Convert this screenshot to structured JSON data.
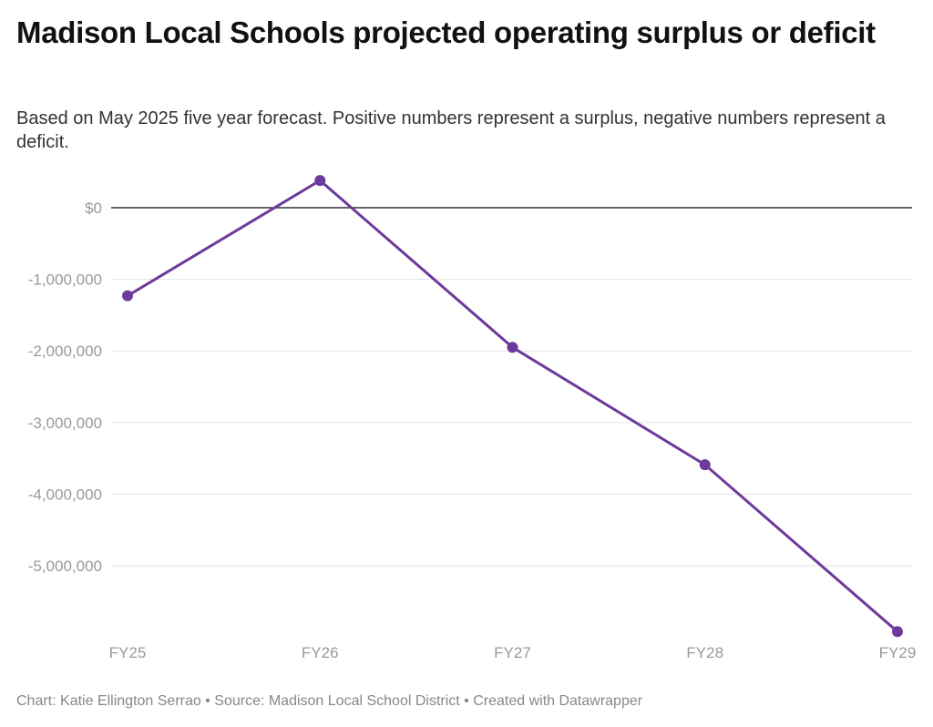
{
  "title": "Madison Local Schools projected operating surplus or deficit",
  "subtitle": "Based on May 2025 five year forecast. Positive numbers represent a surplus, negative numbers represent a deficit.",
  "footer": "Chart: Katie Ellington Serrao • Source: Madison Local School District • Created with Datawrapper",
  "chart_data": {
    "type": "line",
    "categories": [
      "FY25",
      "FY26",
      "FY27",
      "FY28",
      "FY29"
    ],
    "values": [
      -1230000,
      380000,
      -1950000,
      -3590000,
      -5920000
    ],
    "yticks": [
      0,
      -1000000,
      -2000000,
      -3000000,
      -4000000,
      -5000000
    ],
    "ytick_labels": [
      "$0",
      "-1,000,000",
      "-2,000,000",
      "-3,000,000",
      "-4,000,000",
      "-5,000,000"
    ],
    "ylim": [
      -6000000,
      500000
    ],
    "grid": true,
    "color": "#6c3a9a"
  }
}
